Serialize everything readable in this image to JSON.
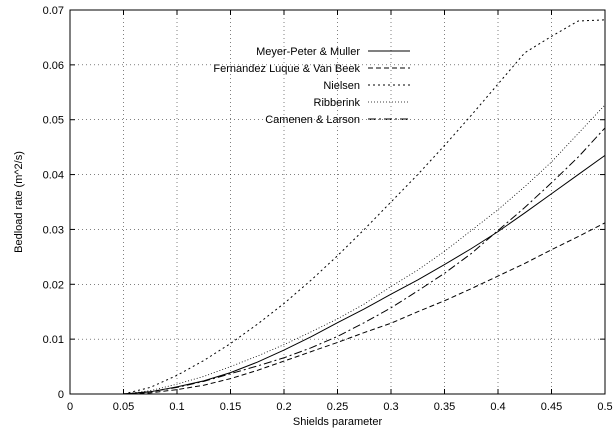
{
  "chart_data": {
    "type": "line",
    "title": "",
    "xlabel": "Shields parameter",
    "ylabel": "Bedload rate (m^2/s)",
    "xlim": [
      0,
      0.5
    ],
    "ylim": [
      0,
      0.07
    ],
    "xticks": [
      0,
      0.05,
      0.1,
      0.15,
      0.2,
      0.25,
      0.3,
      0.35,
      0.4,
      0.45,
      0.5
    ],
    "xtick_labels": [
      "0",
      "0.05",
      "0.1",
      "0.15",
      "0.2",
      "0.25",
      "0.3",
      "0.35",
      "0.4",
      "0.45",
      "0.5"
    ],
    "yticks": [
      0,
      0.01,
      0.02,
      0.03,
      0.04,
      0.05,
      0.06,
      0.07
    ],
    "ytick_labels": [
      "0",
      "0.01",
      "0.02",
      "0.03",
      "0.04",
      "0.05",
      "0.06",
      "0.07"
    ],
    "grid": true,
    "legend_position": "top-left",
    "x": [
      0.05,
      0.075,
      0.1,
      0.125,
      0.15,
      0.175,
      0.2,
      0.225,
      0.25,
      0.275,
      0.3,
      0.325,
      0.35,
      0.375,
      0.4,
      0.425,
      0.45,
      0.475,
      0.5
    ],
    "series": [
      {
        "name": "Meyer-Peter & Muller",
        "dash": "solid",
        "values": [
          0.0,
          0.0004,
          0.0013,
          0.0024,
          0.0039,
          0.0058,
          0.008,
          0.0104,
          0.013,
          0.0155,
          0.0182,
          0.0208,
          0.0236,
          0.0265,
          0.0296,
          0.033,
          0.0365,
          0.04,
          0.0435
        ]
      },
      {
        "name": "Fernandez Luque & Van Beek",
        "dash": "dashed",
        "values": [
          0.0,
          0.0002,
          0.0008,
          0.0016,
          0.0028,
          0.0043,
          0.006,
          0.0077,
          0.0094,
          0.0112,
          0.0129,
          0.015,
          0.017,
          0.0192,
          0.0215,
          0.0238,
          0.0263,
          0.0287,
          0.0312
        ]
      },
      {
        "name": "Nielsen",
        "dash": "dotted",
        "values": [
          0.0,
          0.0012,
          0.0034,
          0.0061,
          0.0092,
          0.0127,
          0.0165,
          0.0207,
          0.0252,
          0.03,
          0.035,
          0.04,
          0.0453,
          0.0508,
          0.0565,
          0.0622,
          0.0652,
          0.068,
          0.0682
        ]
      },
      {
        "name": "Ribberink",
        "dash": "fine-dotted",
        "values": [
          0.0,
          0.0006,
          0.0018,
          0.0032,
          0.005,
          0.0069,
          0.009,
          0.0113,
          0.0137,
          0.0164,
          0.0196,
          0.0226,
          0.026,
          0.0298,
          0.0336,
          0.0378,
          0.0423,
          0.0475,
          0.0527
        ]
      },
      {
        "name": "Camenen & Larson",
        "dash": "dash-dot",
        "values": [
          0.0,
          0.0004,
          0.0012,
          0.0023,
          0.0037,
          0.0051,
          0.0066,
          0.0084,
          0.0105,
          0.013,
          0.0157,
          0.0188,
          0.022,
          0.0256,
          0.0298,
          0.034,
          0.0385,
          0.0432,
          0.0485
        ]
      }
    ]
  }
}
